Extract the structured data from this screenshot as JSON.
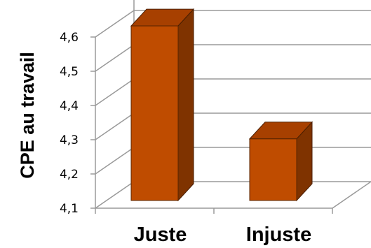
{
  "chart_data": {
    "type": "bar",
    "categories": [
      "Juste",
      "Injuste"
    ],
    "values": [
      4.61,
      4.28
    ],
    "ylabel": "CPE au travail",
    "ylim": [
      4.1,
      4.6
    ],
    "yticks": [
      "4,1",
      "4,2",
      "4,3",
      "4,4",
      "4,5",
      "4,6"
    ],
    "grid": true,
    "three_d": true,
    "colors": {
      "bar_front": "#bf4c00",
      "bar_side": "#7f3300",
      "bar_top": "#a74000",
      "grid": "#9a9a9a"
    }
  }
}
